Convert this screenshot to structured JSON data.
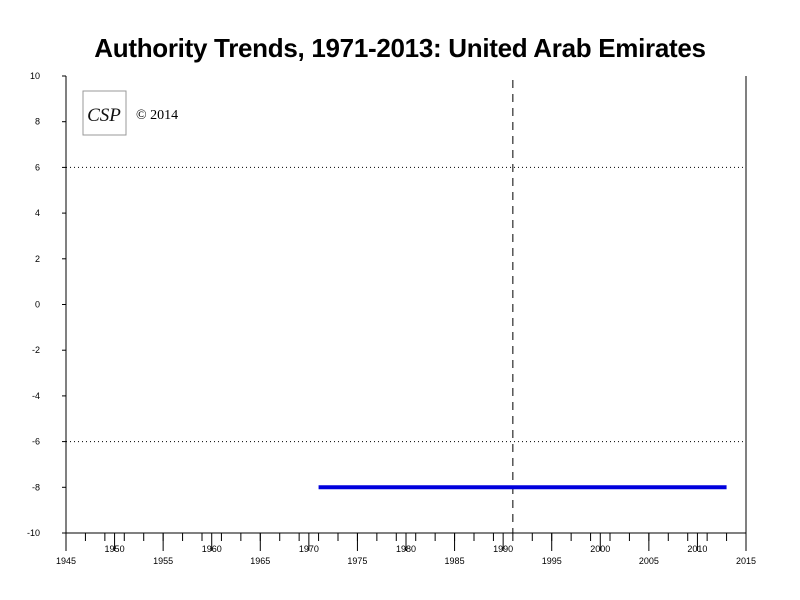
{
  "chart_data": {
    "type": "line",
    "title": "Authority Trends, 1971-2013: United Arab Emirates",
    "xlim": [
      1945,
      2015
    ],
    "ylim": [
      -10,
      10
    ],
    "x_major_ticks": [
      1945,
      1950,
      1955,
      1960,
      1965,
      1970,
      1975,
      1980,
      1985,
      1990,
      1995,
      2000,
      2005,
      2010,
      2015
    ],
    "y_ticks": [
      10,
      8,
      6,
      4,
      2,
      0,
      -2,
      -4,
      -6,
      -8,
      -10
    ],
    "reference_lines_y": [
      6,
      -6
    ],
    "reference_line_x": 1991,
    "series": [
      {
        "x": [
          1971,
          2013
        ],
        "y": [
          -8,
          -8
        ],
        "color": "#0000dd"
      }
    ],
    "copyright": "© 2014",
    "logo": "CSP"
  }
}
